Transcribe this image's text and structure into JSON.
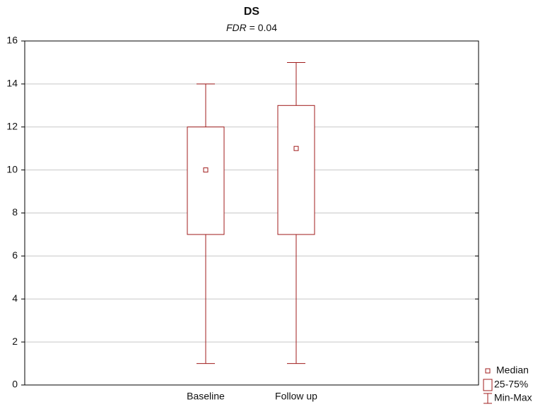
{
  "chart_data": {
    "type": "box",
    "title": "DS",
    "subtitle": [
      "FDR",
      " = 0.04"
    ],
    "categories": [
      "Baseline",
      "Follow up"
    ],
    "boxes": [
      {
        "min": 1,
        "q1": 7,
        "median": 10,
        "q3": 12,
        "max": 14
      },
      {
        "min": 1,
        "q1": 7,
        "median": 11,
        "q3": 13,
        "max": 15
      }
    ],
    "color": "#a01c1c",
    "ylim": [
      0,
      16
    ],
    "yticks": [
      0,
      2,
      4,
      6,
      8,
      10,
      12,
      14,
      16
    ],
    "grid": true,
    "legend": [
      "Median",
      "25-75%",
      "Min-Max"
    ],
    "legend_position": "bottom-right"
  }
}
